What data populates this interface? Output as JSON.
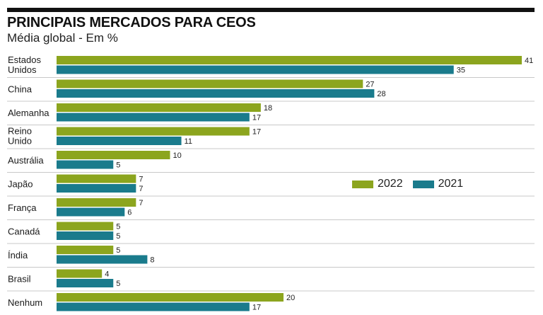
{
  "title": "PRINCIPAIS MERCADOS PARA CEOS",
  "subtitle": "Média global - Em %",
  "chart_data": {
    "type": "bar",
    "orientation": "horizontal",
    "categories": [
      "Estados Unidos",
      "China",
      "Alemanha",
      "Reino Unido",
      "Austrália",
      "Japão",
      "França",
      "Canadá",
      "Índia",
      "Brasil",
      "Nenhum"
    ],
    "category_lines": [
      [
        "Estados",
        "Unidos"
      ],
      [
        "China"
      ],
      [
        "Alemanha"
      ],
      [
        "Reino",
        "Unido"
      ],
      [
        "Austrália"
      ],
      [
        "Japão"
      ],
      [
        "França"
      ],
      [
        "Canadá"
      ],
      [
        "Índia"
      ],
      [
        "Brasil"
      ],
      [
        "Nenhum"
      ]
    ],
    "series": [
      {
        "name": "2022",
        "color": "#8ca51e",
        "values": [
          41,
          27,
          18,
          17,
          10,
          7,
          7,
          5,
          5,
          4,
          20
        ]
      },
      {
        "name": "2021",
        "color": "#1a7b8c",
        "values": [
          35,
          28,
          17,
          11,
          5,
          7,
          6,
          5,
          8,
          5,
          17
        ]
      }
    ],
    "xlim": [
      0,
      41
    ],
    "legend_position": "right",
    "grid": false,
    "value_labels": true
  }
}
